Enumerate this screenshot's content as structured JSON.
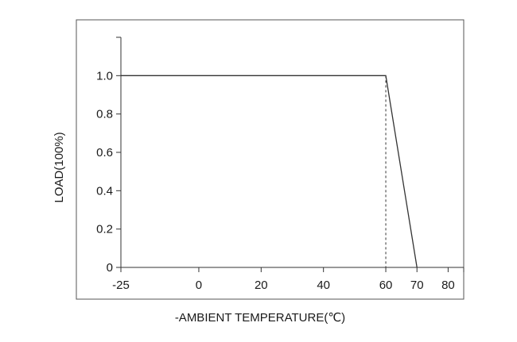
{
  "chart_data": {
    "type": "line",
    "title": "",
    "xlabel": "-AMBIENT TEMPERATURE(℃)",
    "ylabel": "LOAD(100%)",
    "xlim": [
      -25,
      85
    ],
    "ylim": [
      0,
      1.2
    ],
    "x_ticks": [
      -25,
      0,
      20,
      40,
      60,
      70,
      80
    ],
    "x_tick_labels": [
      "-25",
      "0",
      "20",
      "40",
      "60",
      "70",
      "80"
    ],
    "y_ticks": [
      0,
      0.2,
      0.4,
      0.6,
      0.8,
      1.0
    ],
    "y_tick_labels": [
      "0",
      "0.2",
      "0.4",
      "0.6",
      "0.8",
      "1.0"
    ],
    "grid": false,
    "series": [
      {
        "x": [
          -25,
          60,
          70
        ],
        "y": [
          1.0,
          1.0,
          0
        ]
      }
    ],
    "reference_lines": [
      {
        "x": 60,
        "y_from": 0,
        "y_to": 1.0,
        "style": "dashed"
      }
    ],
    "colors": {
      "line": "#333333",
      "frame": "#555555",
      "axis": "#333333"
    }
  }
}
